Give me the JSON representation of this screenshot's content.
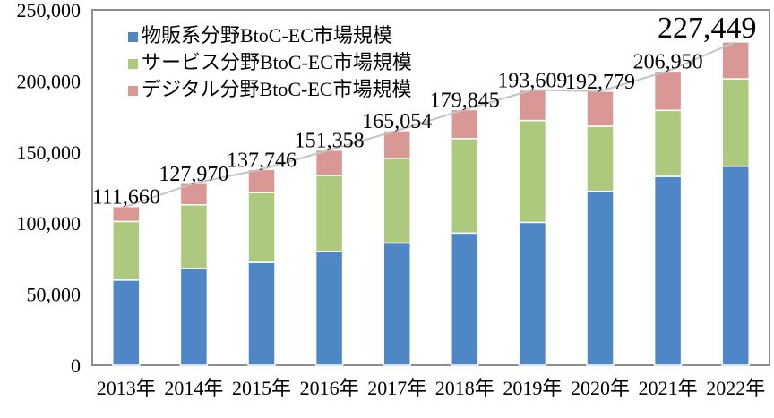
{
  "chart_data": {
    "type": "bar",
    "subtype": "stacked-bar-with-total-line",
    "title": "",
    "categories": [
      "2013年",
      "2014年",
      "2015年",
      "2016年",
      "2017年",
      "2018年",
      "2019年",
      "2020年",
      "2021年",
      "2022年"
    ],
    "series": [
      {
        "name": "物販系分野BtoC-EC市場規模",
        "color": "#4F86C6",
        "values": [
          59931,
          68043,
          72398,
          80043,
          86008,
          92992,
          100515,
          122333,
          132865,
          139997
        ]
      },
      {
        "name": "サービス分野BtoC-EC市場規模",
        "color": "#ADC97E",
        "values": [
          41210,
          44816,
          49014,
          53532,
          59568,
          66471,
          71672,
          45832,
          46424,
          61477
        ]
      },
      {
        "name": "デジタル分野BtoC-EC市場規模",
        "color": "#D99896",
        "values": [
          10519,
          15111,
          16334,
          17783,
          19478,
          20382,
          21422,
          24614,
          27661,
          25974
        ]
      }
    ],
    "total_labels": [
      "111,660",
      "127,970",
      "137,746",
      "151,358",
      "165,054",
      "179,845",
      "193,609",
      "192,779",
      "206,950",
      "227,449"
    ],
    "emphasized_label_index": 9,
    "y_axis": {
      "tick_values": [
        0,
        50000,
        100000,
        150000,
        200000,
        250000
      ],
      "tick_labels": [
        "0",
        "50,000",
        "100,000",
        "150,000",
        "200,000",
        "250,000"
      ],
      "min": 0,
      "max": 250000
    },
    "line_color": "#C4C4C4",
    "plot_border_color": "#8E8E8E",
    "bar_outline_color": "#FFFFFF",
    "grid": false,
    "legend_position": "top-left-inside"
  }
}
